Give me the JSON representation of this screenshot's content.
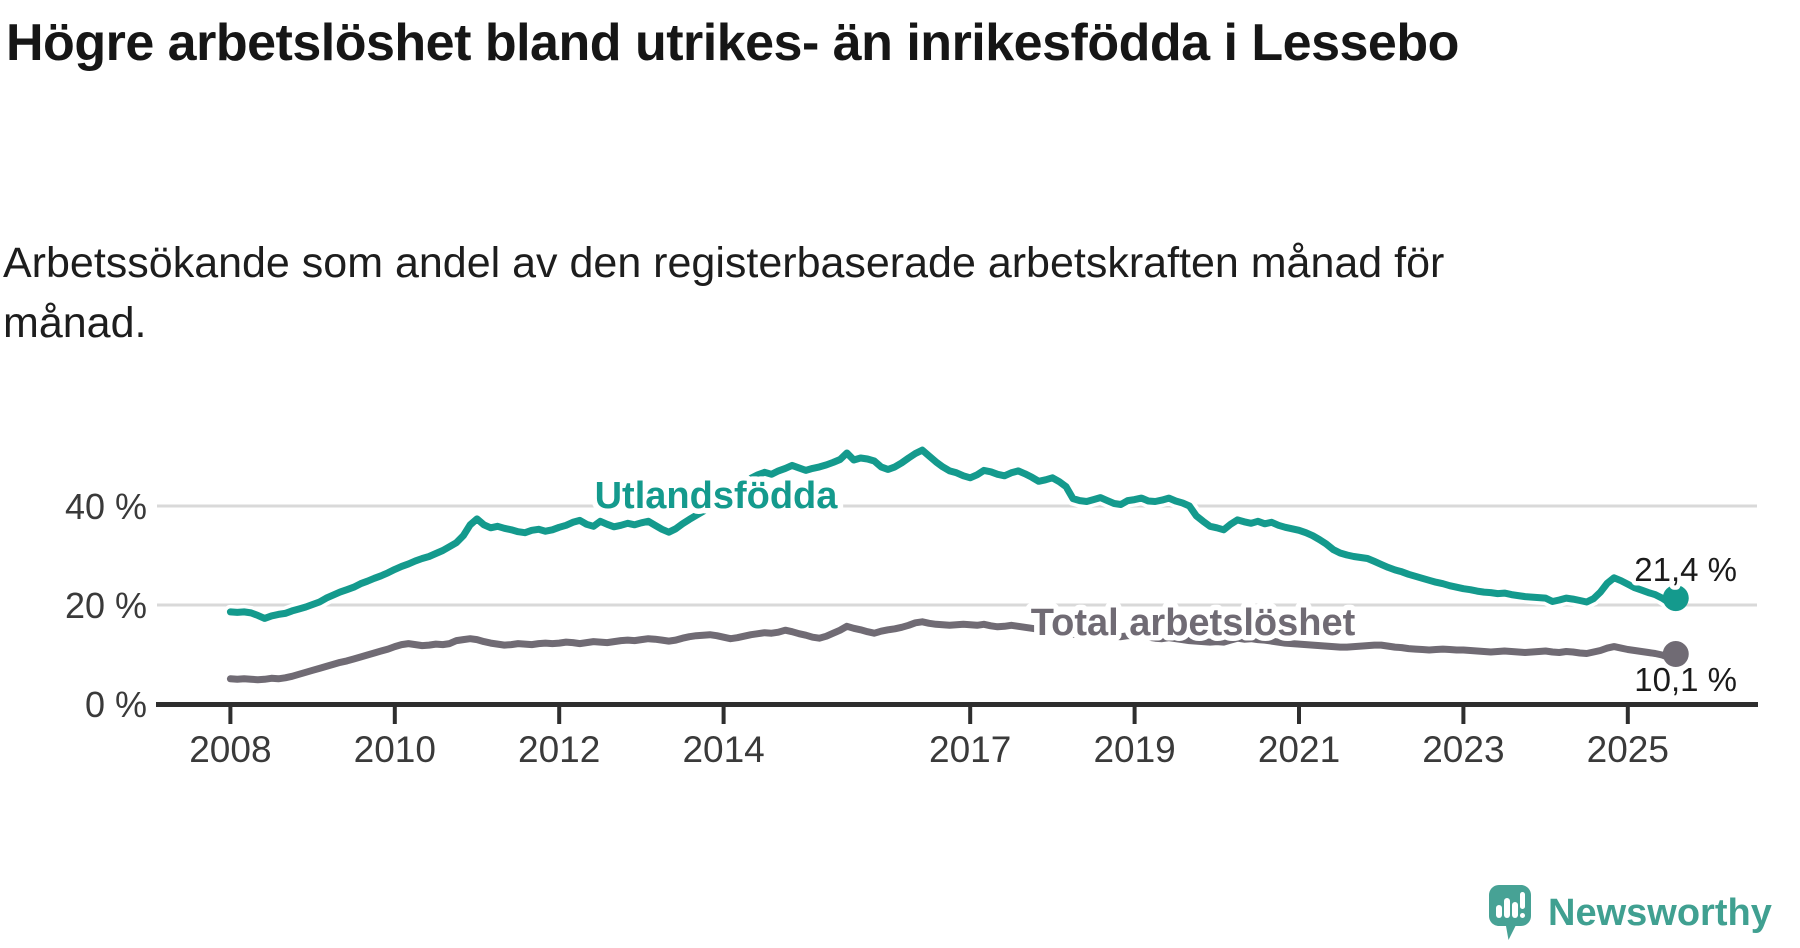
{
  "header": {
    "title": "Högre arbetslöshet bland utrikes- än inrikesfödda i Lessebo",
    "subtitle": "Arbetssökande som andel av den registerbaserade arbetskraften månad för månad."
  },
  "chart": {
    "y_axis_tick_labels": [
      "40 %",
      "20 %",
      "0 %"
    ],
    "x_axis_tick_labels": [
      "2008",
      "2010",
      "2012",
      "2014",
      "2017",
      "2019",
      "2021",
      "2023",
      "2025"
    ],
    "colors": {
      "utlandsfodda": "#149a8d",
      "total": "#706b74",
      "gridline": "#d9d9d9",
      "axis": "#2e2e2e",
      "tick_label": "#3a3a3a",
      "value_label": "#1b1b1b",
      "background": "#ffffff"
    }
  },
  "chart_data": {
    "type": "line",
    "title": "Högre arbetslöshet bland utrikes- än inrikesfödda i Lessebo",
    "x_unit": "month",
    "x_range": [
      "2008-01",
      "2025-08"
    ],
    "x_tick_labels": [
      "2008",
      "2010",
      "2012",
      "2014",
      "2017",
      "2019",
      "2021",
      "2023",
      "2025"
    ],
    "y_ticks": [
      40,
      20,
      0
    ],
    "y_tick_labels": [
      "40 %",
      "20 %",
      "0 %"
    ],
    "ylim": [
      0,
      55
    ],
    "grid": "horizontal",
    "legend_position": "inline-labels",
    "series": [
      {
        "name": "Utlandsfödda",
        "color": "#149a8d",
        "end_label": "21,4 %",
        "last_value": 21.4,
        "values": [
          18.6,
          18.5,
          18.6,
          18.4,
          17.9,
          17.3,
          17.8,
          18.1,
          18.3,
          18.8,
          19.2,
          19.6,
          20.1,
          20.6,
          21.4,
          22.0,
          22.6,
          23.1,
          23.6,
          24.3,
          24.8,
          25.4,
          25.9,
          26.5,
          27.2,
          27.8,
          28.3,
          28.9,
          29.4,
          29.8,
          30.4,
          31.0,
          31.8,
          32.6,
          34.0,
          36.2,
          37.4,
          36.2,
          35.6,
          35.9,
          35.5,
          35.2,
          34.8,
          34.6,
          35.1,
          35.3,
          34.9,
          35.2,
          35.7,
          36.1,
          36.7,
          37.1,
          36.3,
          35.9,
          36.9,
          36.3,
          35.8,
          36.1,
          36.5,
          36.2,
          36.6,
          36.9,
          36.1,
          35.3,
          34.7,
          35.4,
          36.4,
          37.3,
          38.1,
          38.9,
          39.7,
          40.6,
          41.6,
          42.6,
          43.6,
          44.6,
          45.6,
          46.3,
          46.8,
          46.4,
          47.1,
          47.6,
          48.2,
          47.7,
          47.2,
          47.6,
          47.9,
          48.3,
          48.8,
          49.4,
          50.7,
          49.3,
          49.7,
          49.5,
          49.1,
          47.9,
          47.4,
          47.9,
          48.7,
          49.7,
          50.6,
          51.3,
          50.1,
          48.9,
          47.9,
          47.1,
          46.7,
          46.1,
          45.7,
          46.3,
          47.2,
          46.9,
          46.4,
          46.1,
          46.7,
          47.1,
          46.5,
          45.8,
          45.0,
          45.3,
          45.7,
          44.9,
          43.9,
          41.5,
          41.1,
          40.9,
          41.3,
          41.7,
          41.1,
          40.5,
          40.3,
          41.1,
          41.3,
          41.6,
          41.0,
          40.9,
          41.2,
          41.6,
          41.0,
          40.6,
          40.0,
          38.0,
          36.9,
          35.9,
          35.6,
          35.2,
          36.3,
          37.2,
          36.8,
          36.5,
          36.9,
          36.4,
          36.7,
          36.1,
          35.7,
          35.4,
          35.1,
          34.6,
          34.0,
          33.2,
          32.3,
          31.2,
          30.5,
          30.1,
          29.8,
          29.6,
          29.4,
          28.8,
          28.2,
          27.6,
          27.1,
          26.7,
          26.2,
          25.8,
          25.4,
          25.0,
          24.6,
          24.3,
          23.9,
          23.6,
          23.3,
          23.1,
          22.8,
          22.6,
          22.5,
          22.3,
          22.4,
          22.1,
          21.9,
          21.7,
          21.6,
          21.5,
          21.4,
          20.7,
          21.0,
          21.4,
          21.2,
          20.9,
          20.6,
          21.3,
          22.6,
          24.4,
          25.5,
          24.9,
          24.2,
          23.5,
          23.0,
          22.5,
          22.1,
          21.4,
          20.5,
          21.4
        ]
      },
      {
        "name": "Total arbetslöshet",
        "color": "#706b74",
        "end_label": "10,1 %",
        "last_value": 10.1,
        "values": [
          5.1,
          5.0,
          5.1,
          5.0,
          4.9,
          5.0,
          5.2,
          5.1,
          5.3,
          5.6,
          6.0,
          6.4,
          6.8,
          7.2,
          7.6,
          8.0,
          8.4,
          8.7,
          9.1,
          9.5,
          9.9,
          10.3,
          10.7,
          11.1,
          11.6,
          12.0,
          12.2,
          12.0,
          11.8,
          11.9,
          12.1,
          12.0,
          12.2,
          12.8,
          13.0,
          13.2,
          13.0,
          12.6,
          12.3,
          12.1,
          11.9,
          12.0,
          12.2,
          12.1,
          12.0,
          12.2,
          12.3,
          12.2,
          12.3,
          12.5,
          12.4,
          12.2,
          12.4,
          12.6,
          12.5,
          12.4,
          12.6,
          12.8,
          12.9,
          12.8,
          13.0,
          13.2,
          13.1,
          12.9,
          12.7,
          12.9,
          13.3,
          13.6,
          13.8,
          13.9,
          14.0,
          13.8,
          13.5,
          13.2,
          13.4,
          13.7,
          14.0,
          14.2,
          14.4,
          14.3,
          14.5,
          14.9,
          14.6,
          14.2,
          13.9,
          13.5,
          13.3,
          13.7,
          14.3,
          14.9,
          15.7,
          15.3,
          15.0,
          14.6,
          14.3,
          14.7,
          15.0,
          15.2,
          15.5,
          15.9,
          16.4,
          16.6,
          16.3,
          16.1,
          16.0,
          15.9,
          16.0,
          16.1,
          16.0,
          15.9,
          16.1,
          15.8,
          15.6,
          15.7,
          15.9,
          15.7,
          15.5,
          15.3,
          15.1,
          15.2,
          15.0,
          14.7,
          14.4,
          14.1,
          13.9,
          13.8,
          14.0,
          14.1,
          13.9,
          13.7,
          13.6,
          13.8,
          13.9,
          13.7,
          13.5,
          13.3,
          13.2,
          13.4,
          13.2,
          13.0,
          12.8,
          12.7,
          12.6,
          12.5,
          12.6,
          12.5,
          12.9,
          13.3,
          13.1,
          13.2,
          13.0,
          12.9,
          12.7,
          12.5,
          12.3,
          12.2,
          12.1,
          12.0,
          11.9,
          11.8,
          11.7,
          11.6,
          11.5,
          11.5,
          11.6,
          11.7,
          11.8,
          11.9,
          11.9,
          11.7,
          11.5,
          11.4,
          11.2,
          11.1,
          11.0,
          10.9,
          11.0,
          11.1,
          11.0,
          10.9,
          10.9,
          10.8,
          10.7,
          10.6,
          10.5,
          10.6,
          10.7,
          10.6,
          10.5,
          10.4,
          10.5,
          10.6,
          10.7,
          10.5,
          10.4,
          10.6,
          10.5,
          10.3,
          10.2,
          10.5,
          10.8,
          11.3,
          11.6,
          11.3,
          11.0,
          10.8,
          10.6,
          10.4,
          10.2,
          9.9,
          9.4,
          10.1
        ]
      }
    ]
  },
  "footer": {
    "brand": "Newsworthy"
  }
}
